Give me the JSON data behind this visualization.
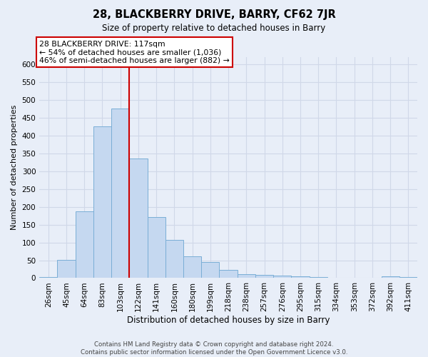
{
  "title": "28, BLACKBERRY DRIVE, BARRY, CF62 7JR",
  "subtitle": "Size of property relative to detached houses in Barry",
  "xlabel": "Distribution of detached houses by size in Barry",
  "ylabel": "Number of detached properties",
  "bar_color": "#c5d8f0",
  "bar_edge_color": "#7aaed6",
  "categories": [
    "26sqm",
    "45sqm",
    "64sqm",
    "83sqm",
    "103sqm",
    "122sqm",
    "141sqm",
    "160sqm",
    "180sqm",
    "199sqm",
    "218sqm",
    "238sqm",
    "257sqm",
    "276sqm",
    "295sqm",
    "315sqm",
    "334sqm",
    "353sqm",
    "372sqm",
    "392sqm",
    "411sqm"
  ],
  "values": [
    3,
    52,
    187,
    425,
    476,
    335,
    172,
    107,
    62,
    45,
    23,
    11,
    9,
    7,
    5,
    2,
    1,
    1,
    1,
    4,
    3
  ],
  "vline_x": 4.5,
  "vline_color": "#cc0000",
  "ylim": [
    0,
    620
  ],
  "yticks": [
    0,
    50,
    100,
    150,
    200,
    250,
    300,
    350,
    400,
    450,
    500,
    550,
    600
  ],
  "annotation_text": "28 BLACKBERRY DRIVE: 117sqm\n← 54% of detached houses are smaller (1,036)\n46% of semi-detached houses are larger (882) →",
  "annotation_box_color": "#ffffff",
  "annotation_box_edge": "#cc0000",
  "footer1": "Contains HM Land Registry data © Crown copyright and database right 2024.",
  "footer2": "Contains public sector information licensed under the Open Government Licence v3.0.",
  "bg_color": "#e8eef8",
  "grid_color": "#d0d8e8"
}
